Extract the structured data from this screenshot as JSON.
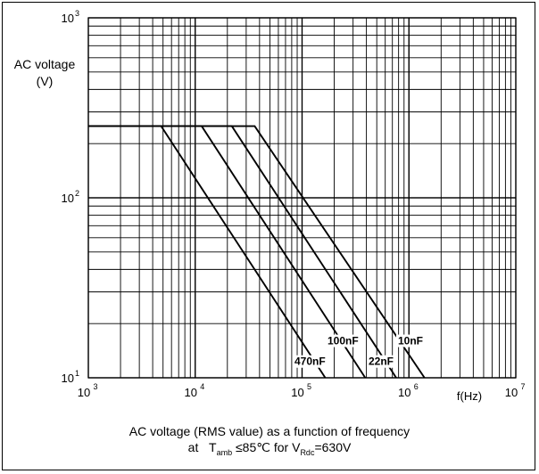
{
  "chart_data": {
    "type": "line",
    "x_scale": "log",
    "y_scale": "log",
    "xlim": [
      1000,
      10000000
    ],
    "ylim": [
      10,
      1000
    ],
    "grid": true,
    "xlabel": "f(Hz)",
    "ylabel": [
      "AC voltage",
      "(V)"
    ],
    "x_ticks": [
      {
        "base": "10",
        "exp": "3"
      },
      {
        "base": "10",
        "exp": "4"
      },
      {
        "base": "10",
        "exp": "5"
      },
      {
        "base": "10",
        "exp": "6"
      },
      {
        "base": "10",
        "exp": "7"
      }
    ],
    "y_ticks": [
      {
        "base": "10",
        "exp": "1"
      },
      {
        "base": "10",
        "exp": "2"
      },
      {
        "base": "10",
        "exp": "3"
      }
    ],
    "series": [
      {
        "name": "470nF",
        "x": [
          1000,
          4800,
          165000
        ],
        "y": [
          250,
          250,
          10
        ]
      },
      {
        "name": "100nF",
        "x": [
          1000,
          11500,
          390000
        ],
        "y": [
          250,
          250,
          10
        ]
      },
      {
        "name": "22nF",
        "x": [
          1000,
          22000,
          760000
        ],
        "y": [
          250,
          250,
          10
        ]
      },
      {
        "name": "10nF",
        "x": [
          1000,
          36000,
          1400000
        ],
        "y": [
          250,
          250,
          10
        ]
      }
    ],
    "caption": {
      "line1": "AC voltage (RMS value) as a function of frequency",
      "line2_at": "at",
      "t_main": "T",
      "t_sub": "amb",
      "cond": "≤85℃  for V",
      "v_sub": "Rdc",
      "v_val": "=630V"
    }
  }
}
